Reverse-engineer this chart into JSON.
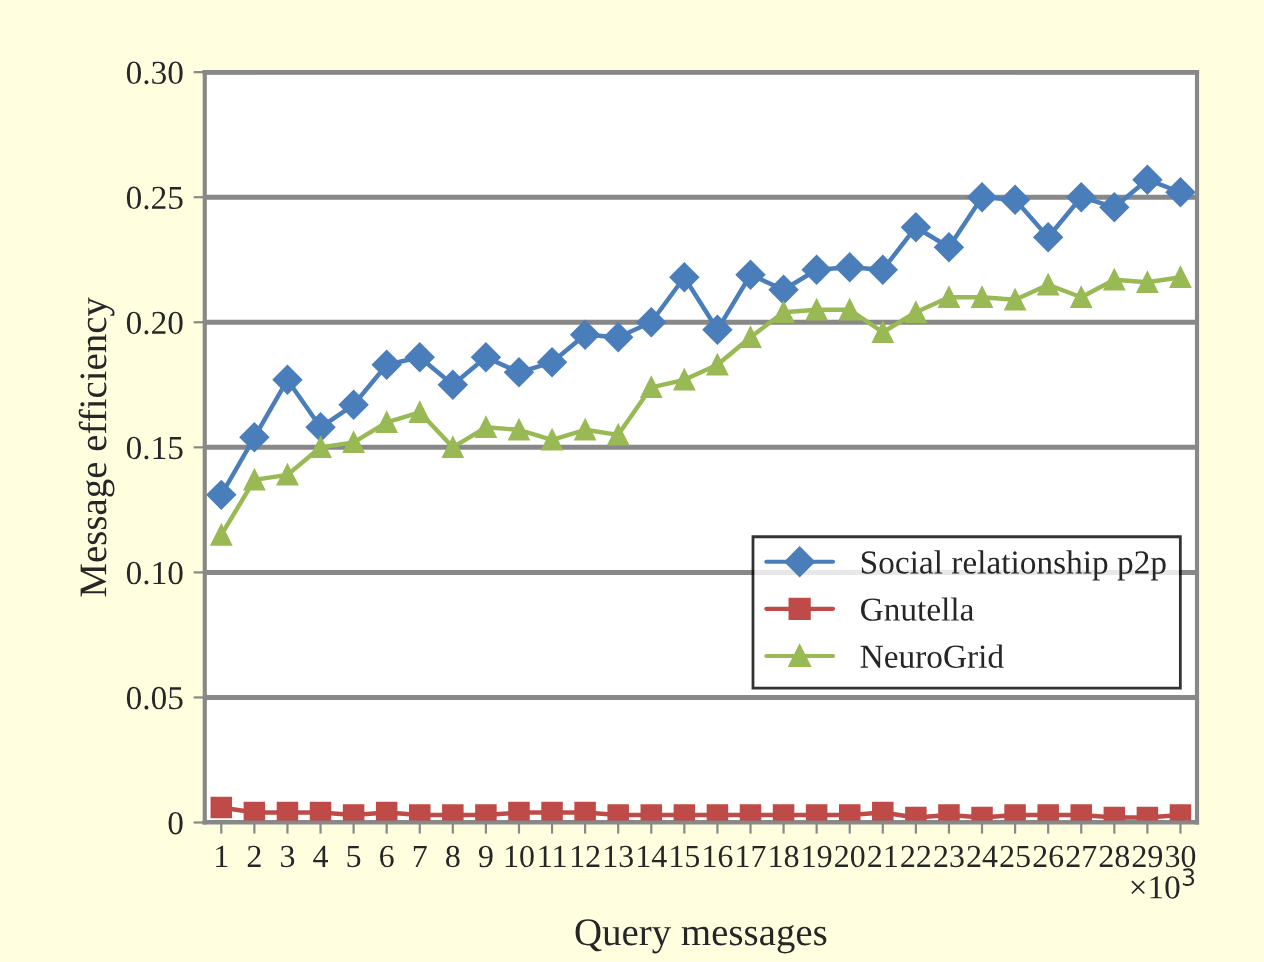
{
  "chart_data": {
    "type": "line",
    "xlabel": "Query messages",
    "ylabel": "Message efficiency",
    "annotations": [
      "×10$^{3}$"
    ],
    "categories": [
      "1",
      "2",
      "3",
      "4",
      "5",
      "6",
      "7",
      "8",
      "9",
      "10",
      "11",
      "12",
      "13",
      "14",
      "15",
      "16",
      "17",
      "18",
      "19",
      "20",
      "21",
      "22",
      "23",
      "24",
      "25",
      "26",
      "27",
      "28",
      "29",
      "30"
    ],
    "series": [
      {
        "name": "Social relationship p2p",
        "color": "#4a7ebb",
        "marker": "diamond",
        "values": [
          0.131,
          0.154,
          0.177,
          0.158,
          0.167,
          0.183,
          0.186,
          0.175,
          0.186,
          0.18,
          0.184,
          0.195,
          0.194,
          0.2,
          0.218,
          0.197,
          0.219,
          0.213,
          0.221,
          0.222,
          0.221,
          0.238,
          0.23,
          0.25,
          0.249,
          0.234,
          0.25,
          0.246,
          0.257,
          0.252
        ]
      },
      {
        "name": "Gnutella",
        "color": "#be4b48",
        "marker": "square",
        "values": [
          0.006,
          0.004,
          0.004,
          0.004,
          0.003,
          0.004,
          0.003,
          0.003,
          0.003,
          0.004,
          0.004,
          0.004,
          0.003,
          0.003,
          0.003,
          0.003,
          0.003,
          0.003,
          0.003,
          0.003,
          0.004,
          0.002,
          0.003,
          0.002,
          0.003,
          0.003,
          0.003,
          0.002,
          0.002,
          0.003
        ]
      },
      {
        "name": "NeuroGrid",
        "color": "#98b954",
        "marker": "triangle",
        "values": [
          0.115,
          0.137,
          0.139,
          0.15,
          0.152,
          0.16,
          0.164,
          0.15,
          0.158,
          0.157,
          0.153,
          0.157,
          0.155,
          0.174,
          0.177,
          0.183,
          0.194,
          0.204,
          0.205,
          0.205,
          0.196,
          0.204,
          0.21,
          0.21,
          0.209,
          0.215,
          0.21,
          0.217,
          0.216,
          0.218
        ]
      }
    ],
    "ylim": [
      0,
      0.3
    ],
    "yticks": [
      {
        "value": 0,
        "label": "0"
      },
      {
        "value": 0.05,
        "label": "0.05"
      },
      {
        "value": 0.1,
        "label": "0.10"
      },
      {
        "value": 0.15,
        "label": "0.15"
      },
      {
        "value": 0.2,
        "label": "0.20"
      },
      {
        "value": 0.25,
        "label": "0.25"
      },
      {
        "value": 0.3,
        "label": "0.30"
      }
    ],
    "grid": "y",
    "legend": "right"
  }
}
